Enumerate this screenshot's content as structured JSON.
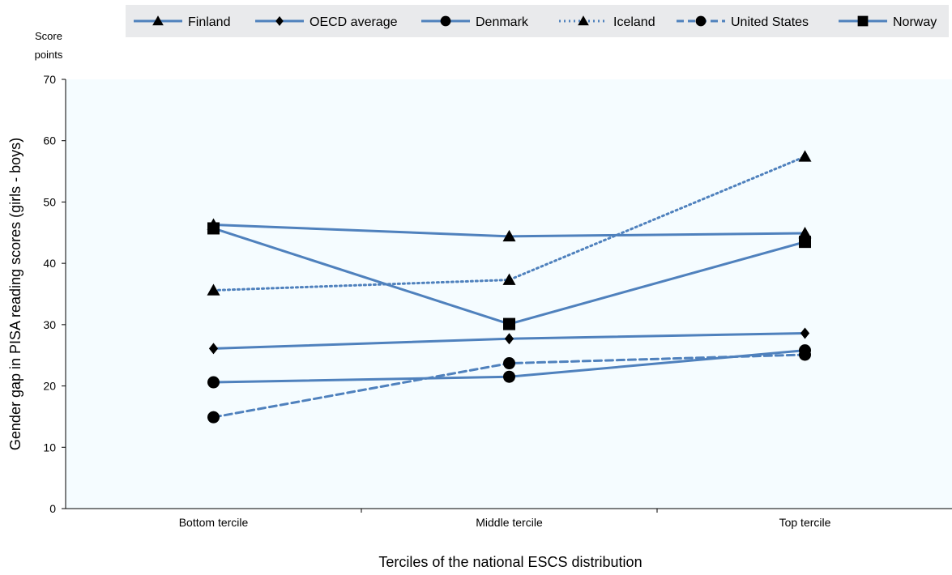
{
  "chart_data": {
    "type": "line",
    "unit_label": [
      "Score",
      "points"
    ],
    "ylabel": "Gender gap in PISA reading  scores (girls - boys)",
    "xlabel": "Terciles of the national ESCS distribution",
    "categories": [
      "Bottom tercile",
      "Middle tercile",
      "Top tercile"
    ],
    "ylim": [
      0,
      70
    ],
    "yticks": [
      0,
      10,
      20,
      30,
      40,
      50,
      60,
      70
    ],
    "grid": false,
    "legend_position": "top",
    "plot_background": "#f5fcff",
    "series": [
      {
        "name": "Finland",
        "values": [
          46.3,
          44.4,
          44.9
        ],
        "marker": "triangle",
        "dash": "solid",
        "color": "#4f81bd"
      },
      {
        "name": "OECD average",
        "values": [
          26.1,
          27.7,
          28.6
        ],
        "marker": "diamond",
        "dash": "solid",
        "color": "#4f81bd"
      },
      {
        "name": "Denmark",
        "values": [
          20.6,
          21.5,
          25.8
        ],
        "marker": "circle",
        "dash": "solid",
        "color": "#4f81bd"
      },
      {
        "name": "Iceland",
        "values": [
          35.6,
          37.3,
          57.4
        ],
        "marker": "triangle",
        "dash": "dotted",
        "color": "#4f81bd"
      },
      {
        "name": "United States",
        "values": [
          14.9,
          23.7,
          25.1
        ],
        "marker": "circle",
        "dash": "dashed",
        "color": "#4f81bd"
      },
      {
        "name": "Norway",
        "values": [
          45.7,
          30.1,
          43.5
        ],
        "marker": "square",
        "dash": "solid",
        "color": "#4f81bd"
      }
    ]
  }
}
